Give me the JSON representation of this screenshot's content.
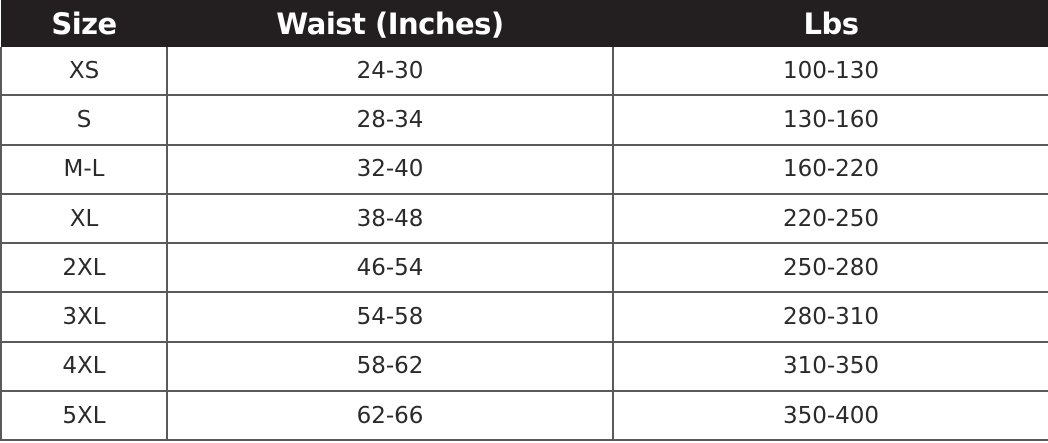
{
  "table": {
    "headers": [
      "Size",
      "Waist (Inches)",
      "Lbs"
    ],
    "rows": [
      [
        "XS",
        "24-30",
        "100-130"
      ],
      [
        "S",
        "28-34",
        "130-160"
      ],
      [
        "M-L",
        "32-40",
        "160-220"
      ],
      [
        "XL",
        "38-48",
        "220-250"
      ],
      [
        "2XL",
        "46-54",
        "250-280"
      ],
      [
        "3XL",
        "54-58",
        "280-310"
      ],
      [
        "4XL",
        "58-62",
        "310-350"
      ],
      [
        "5XL",
        "62-66",
        "350-400"
      ]
    ]
  },
  "colors": {
    "header_bg": "#231f20",
    "header_text": "#ffffff",
    "border": "#5a5a5a"
  }
}
